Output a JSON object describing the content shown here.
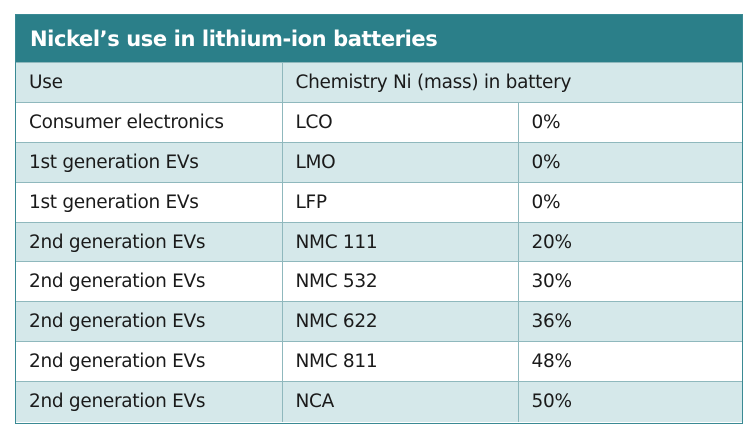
{
  "title": "Nickel’s use in lithium-ion batteries",
  "header": {
    "use": "Use",
    "chemistry_ni": "Chemistry Ni (mass) in battery"
  },
  "rows": [
    {
      "use": "Consumer electronics",
      "chemistry": "LCO",
      "ni": "0%"
    },
    {
      "use": "1st generation EVs",
      "chemistry": "LMO",
      "ni": "0%"
    },
    {
      "use": "1st generation EVs",
      "chemistry": "LFP",
      "ni": "0%"
    },
    {
      "use": "2nd generation EVs",
      "chemistry": "NMC 111",
      "ni": "20%"
    },
    {
      "use": "2nd generation EVs",
      "chemistry": "NMC 532",
      "ni": "30%"
    },
    {
      "use": "2nd generation EVs",
      "chemistry": "NMC 622",
      "ni": "36%"
    },
    {
      "use": "2nd generation EVs",
      "chemistry": "NMC 811",
      "ni": "48%"
    },
    {
      "use": "2nd generation EVs",
      "chemistry": "NCA",
      "ni": "50%"
    }
  ],
  "colors": {
    "title_bar": "#2b7f89",
    "row_shade": "#d5e8ea",
    "border": "#8fb8bd"
  }
}
